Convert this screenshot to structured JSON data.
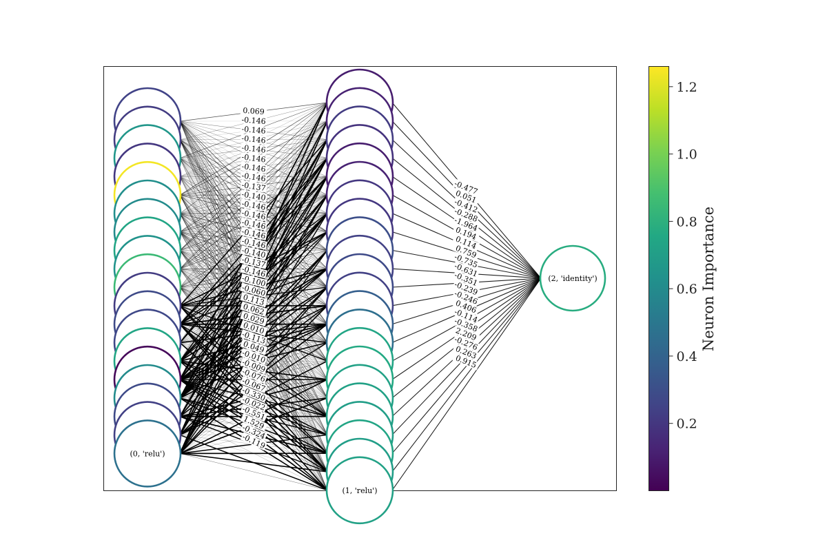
{
  "colorbar": {
    "label": "Neuron Importance",
    "ticks": [
      {
        "value": 0.2,
        "label": "0.2"
      },
      {
        "value": 0.4,
        "label": "0.4"
      },
      {
        "value": 0.6,
        "label": "0.6"
      },
      {
        "value": 0.8,
        "label": "0.8"
      },
      {
        "value": 1.0,
        "label": "1.0"
      },
      {
        "value": 1.2,
        "label": "1.2"
      }
    ],
    "min": 0.0,
    "max": 1.26
  },
  "layers": [
    {
      "label": "(0, 'relu')",
      "importance": [
        0.25,
        0.22,
        0.66,
        0.2,
        1.24,
        0.62,
        0.6,
        0.74,
        0.64,
        0.85,
        0.22,
        0.28,
        0.27,
        0.74,
        0.02,
        0.6,
        0.28,
        0.24,
        0.47
      ]
    },
    {
      "label": "(1, 'relu')",
      "importance": [
        0.1,
        0.12,
        0.22,
        0.18,
        0.1,
        0.12,
        0.2,
        0.2,
        0.3,
        0.24,
        0.28,
        0.24,
        0.38,
        0.46,
        0.74,
        0.76,
        0.72,
        0.72,
        0.7,
        0.74,
        0.7,
        0.72
      ]
    },
    {
      "label": "(2, 'identity')",
      "importance": [
        0.78
      ]
    }
  ],
  "edge_labels_01": [
    "0.069",
    "-0.146",
    "-0.146",
    "-0.146",
    "-0.146",
    "-0.146",
    "-0.146",
    "-0.146",
    "-0.137",
    "-0.140",
    "-0.146",
    "-0.146",
    "-0.146",
    "-0.146",
    "-0.146",
    "-0.140",
    "-0.137",
    "-0.146",
    "-0.100",
    "-0.060",
    "0.113",
    "0.062",
    "0.029",
    "0.010",
    "-0.113",
    "0.049",
    "-0.010",
    "-0.009",
    "-0.076",
    "-0.067",
    "-0.330",
    "-0.022",
    "-0.551",
    "1.529",
    "-0.324",
    "-0.119"
  ],
  "edge_labels_12": [
    "-0.477",
    "0.051",
    "-0.412",
    "-0.288",
    "-1.964",
    "0.194",
    "0.114",
    "0.759",
    "-0.735",
    "-0.631",
    "-0.351",
    "-0.239",
    "-0.246",
    "0.406",
    "-0.114",
    "-0.358",
    "2.209",
    "-0.276",
    "0.263",
    "0.915"
  ]
}
